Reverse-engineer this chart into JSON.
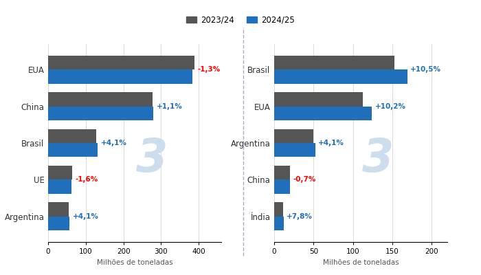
{
  "corn": {
    "categories": [
      "Argentina",
      "UE",
      "Brasil",
      "China",
      "EUA"
    ],
    "values_2324": [
      55,
      63,
      127,
      277,
      389
    ],
    "values_2425": [
      57,
      62,
      132,
      280,
      384
    ],
    "labels": [
      "+4,1%",
      "-1,6%",
      "+4,1%",
      "+1,1%",
      "-1,3%"
    ],
    "label_colors": [
      "#1f6fba",
      "red",
      "#1f6fba",
      "#1f6fba",
      "red"
    ],
    "xlabel": "Milhões de toneladas",
    "xlim": [
      0,
      460
    ],
    "xticks": [
      0,
      100,
      200,
      300,
      400
    ]
  },
  "soy": {
    "categories": [
      "Índia",
      "China",
      "Argentina",
      "EUA",
      "Brasil"
    ],
    "values_2324": [
      11,
      20,
      50,
      113,
      153
    ],
    "values_2425": [
      12,
      20,
      52,
      124,
      169
    ],
    "labels": [
      "+7,8%",
      "-0,7%",
      "+4,1%",
      "+10,2%",
      "+10,5%"
    ],
    "label_colors": [
      "#1f6fba",
      "red",
      "#1f6fba",
      "#1f6fba",
      "#1f6fba"
    ],
    "xlabel": "Milhões de toneladas",
    "xlim": [
      0,
      220
    ],
    "xticks": [
      0,
      50,
      100,
      150,
      200
    ]
  },
  "color_2324": "#555555",
  "color_2425": "#1f6fba",
  "legend_labels": [
    "2023/24",
    "2024/25"
  ],
  "bg_color": "#ffffff",
  "watermark_color": "#ccdded"
}
